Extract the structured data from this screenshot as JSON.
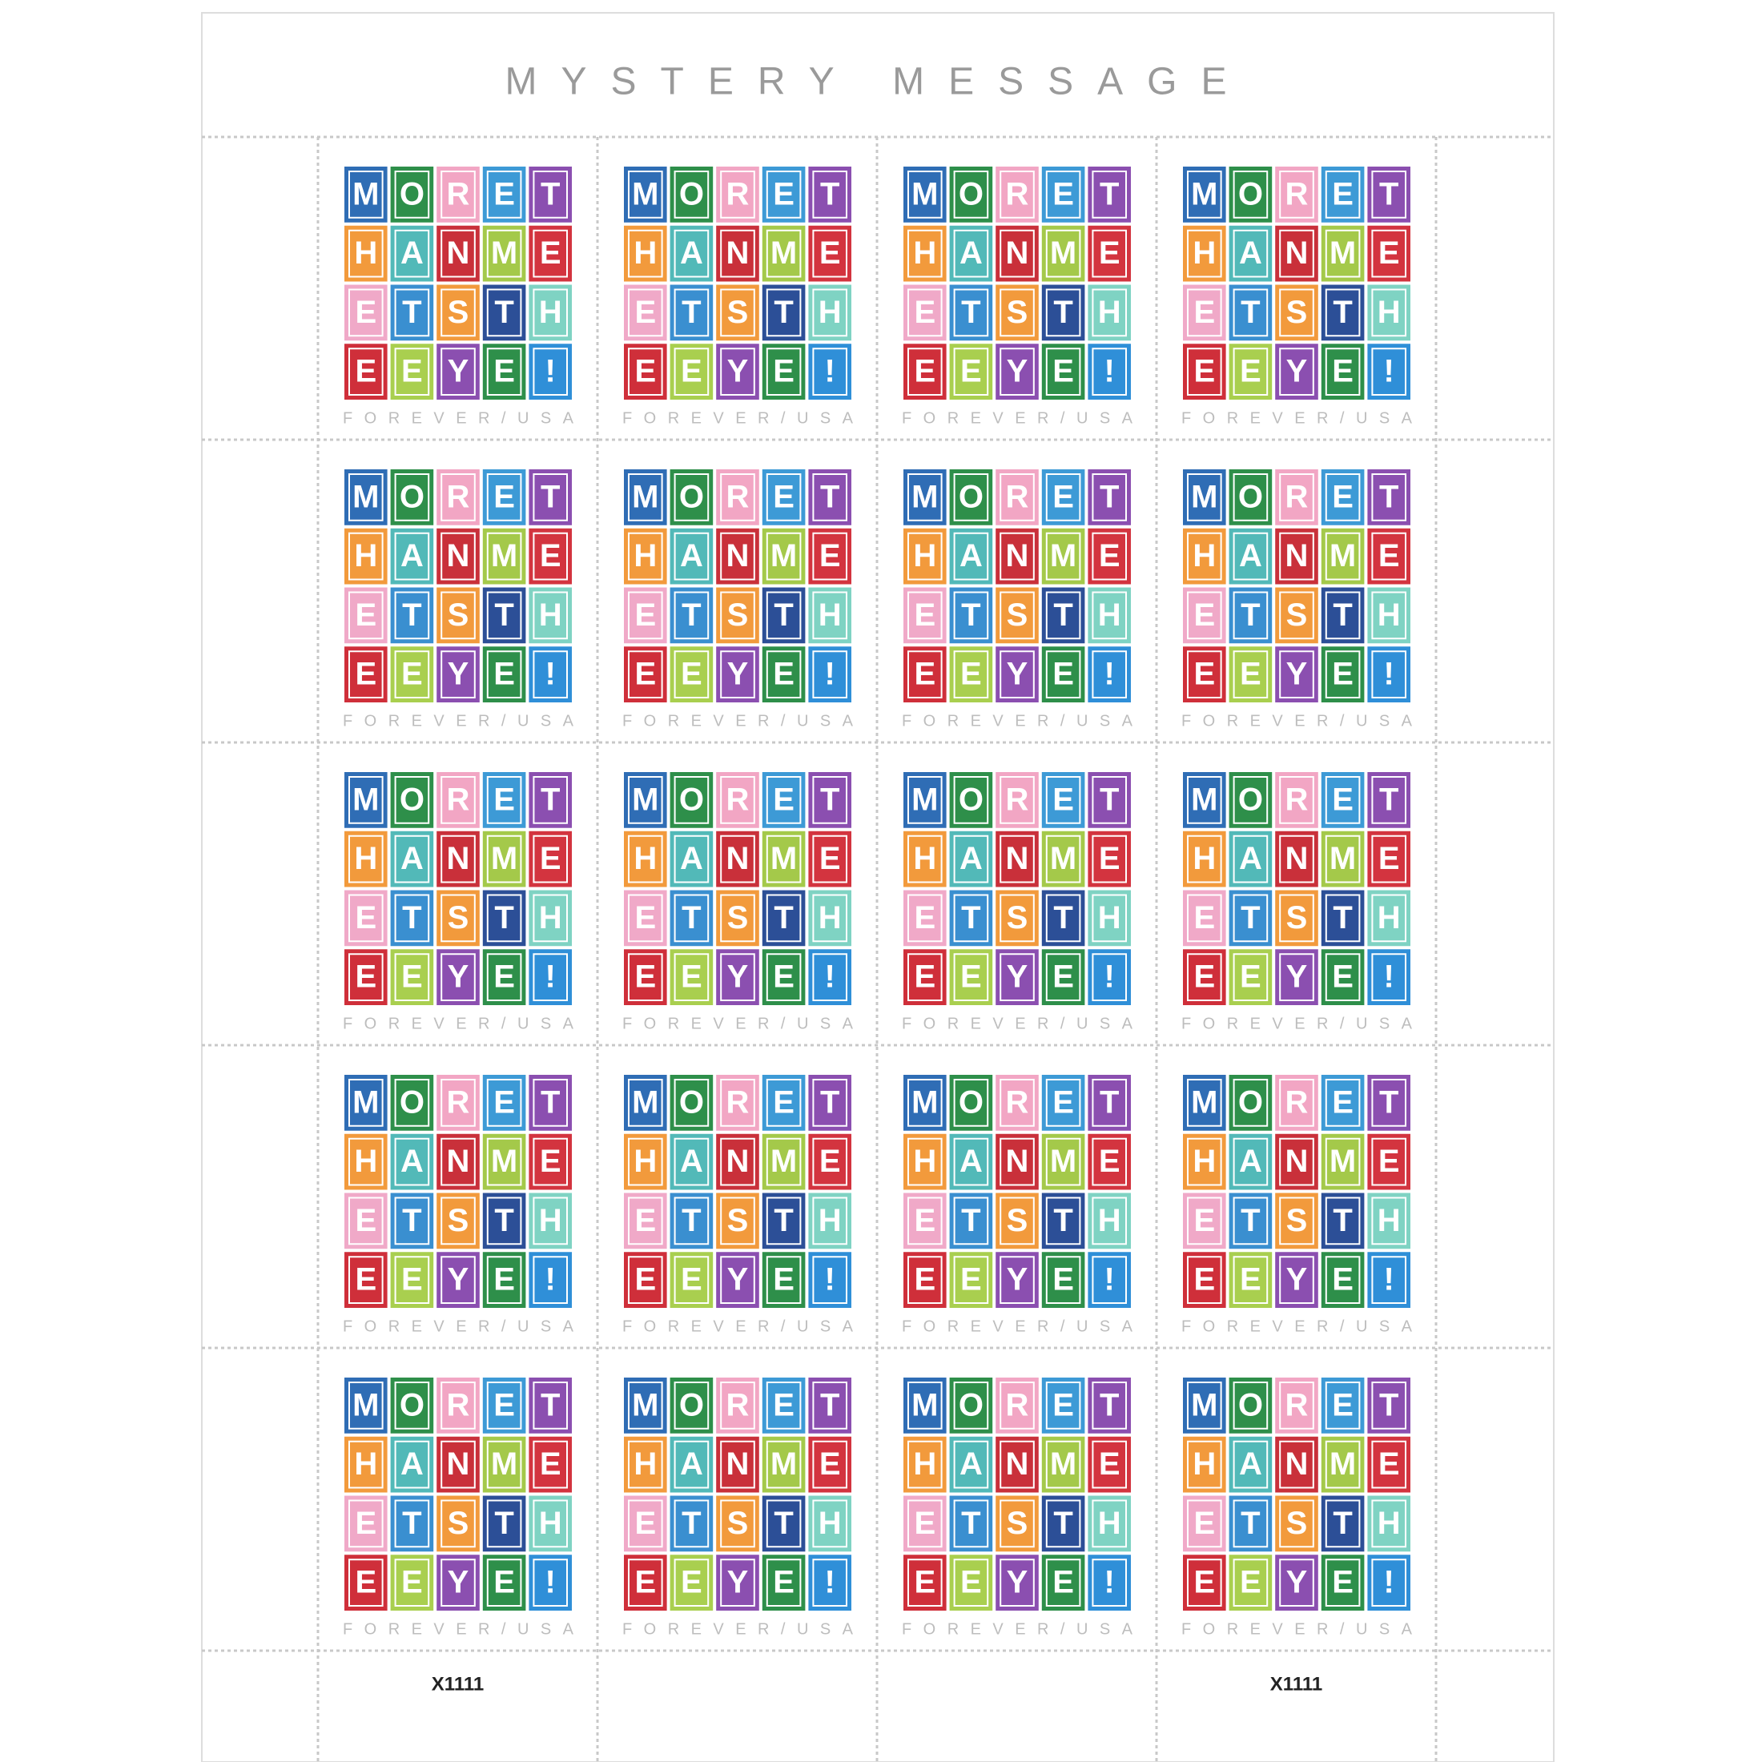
{
  "sheet": {
    "title": "MYSTERY MESSAGE",
    "stamp": {
      "denomination": "FOREVER/USA",
      "letters": [
        [
          "M",
          "O",
          "R",
          "E",
          "T"
        ],
        [
          "H",
          "A",
          "N",
          "M",
          "E"
        ],
        [
          "E",
          "T",
          "S",
          "T",
          "H"
        ],
        [
          "E",
          "E",
          "Y",
          "E",
          "!"
        ]
      ],
      "colors": [
        [
          "#2f6db5",
          "#2e8f4a",
          "#f2a6c4",
          "#3d9ad6",
          "#8b4fb0"
        ],
        [
          "#f29a3c",
          "#52b9b8",
          "#c9303a",
          "#a4c94a",
          "#d3343f"
        ],
        [
          "#f0a9c8",
          "#3a8fd0",
          "#f29a3c",
          "#2c4f97",
          "#7fd3c3"
        ],
        [
          "#cf2f3a",
          "#a9cf4f",
          "#8b4fb0",
          "#2e8f4a",
          "#2f8fd8"
        ]
      ]
    },
    "plate_numbers": [
      "X1111",
      "X1111"
    ]
  }
}
